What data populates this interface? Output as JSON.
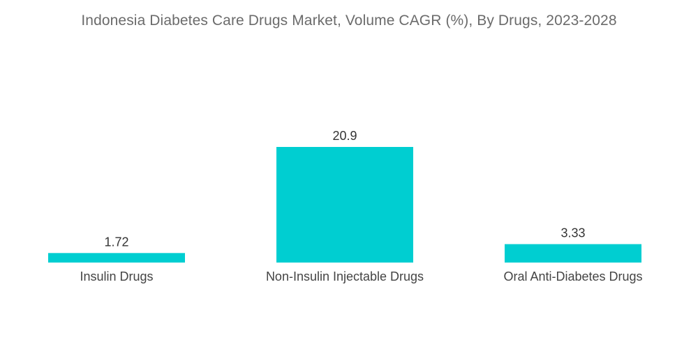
{
  "chart_data": {
    "type": "bar",
    "title": "Indonesia Diabetes Care Drugs Market, Volume CAGR (%), By Drugs, 2023-2028",
    "xlabel": "",
    "ylabel": "",
    "categories": [
      "Insulin Drugs",
      "Non-Insulin Injectable Drugs",
      "Oral Anti-Diabetes Drugs"
    ],
    "values": [
      1.72,
      20.9,
      3.33
    ],
    "value_labels": [
      "1.72",
      "20.9",
      "3.33"
    ],
    "ylim": [
      0,
      20.9
    ],
    "grid": false,
    "legend": "none",
    "bar_color": "#00CED1"
  }
}
